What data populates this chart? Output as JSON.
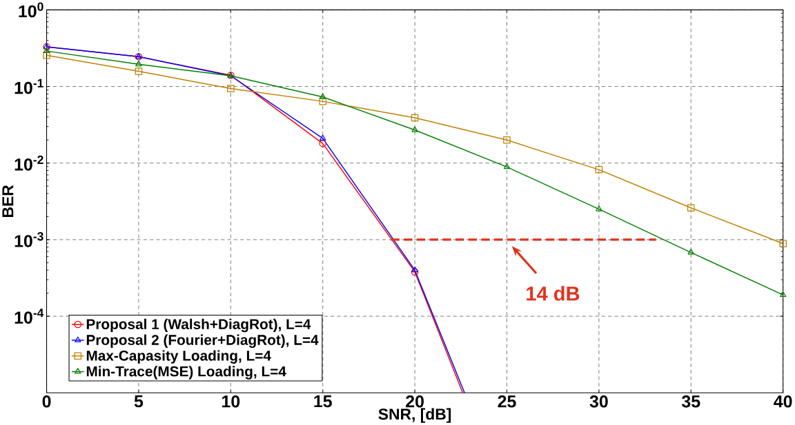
{
  "chart_data": {
    "type": "line",
    "xlabel": "SNR, [dB]",
    "ylabel": "BER",
    "xlim": [
      0,
      40
    ],
    "xticks": [
      0,
      5,
      10,
      15,
      20,
      25,
      30,
      35,
      40
    ],
    "ylim": [
      1e-05,
      1
    ],
    "log": "y",
    "yticks": [
      {
        "value": 0.0001,
        "label": "10$^{-4}$"
      },
      {
        "value": 0.001,
        "label": "10$^{-3}$"
      },
      {
        "value": 0.01,
        "label": "10$^{-2}$"
      },
      {
        "value": 0.1,
        "label": "10$^{-1}$"
      },
      {
        "value": 1,
        "label": "10$^{0}$"
      }
    ],
    "grid": true,
    "legend": "bottom left",
    "line_style": "solid",
    "series": [
      {
        "name": "Proposal 1 (Walsh+DiagRot), L=4",
        "color": "#ff0000",
        "marker": "circle",
        "x": [
          0,
          5,
          10,
          15,
          20,
          22.6
        ],
        "values": [
          0.33,
          0.245,
          0.14,
          0.018,
          0.00038,
          1e-05
        ]
      },
      {
        "name": "Proposal 2 (Fourier+DiagRot), L=4",
        "color": "#0000ff",
        "marker": "triangle",
        "x": [
          0,
          5,
          10,
          15,
          20,
          22.7
        ],
        "values": [
          0.33,
          0.245,
          0.138,
          0.021,
          0.0004,
          1e-05
        ]
      },
      {
        "name": "Max-Capasity Loading, L=4",
        "color": "#bf8000",
        "marker": "square",
        "x": [
          0,
          5,
          10,
          15,
          20,
          25,
          30,
          35,
          40
        ],
        "values": [
          0.256,
          0.158,
          0.094,
          0.064,
          0.039,
          0.02,
          0.0082,
          0.0026,
          0.00089
        ]
      },
      {
        "name": "Min-Trace(MSE) Loading, L=4",
        "color": "#008000",
        "marker": "triangle",
        "x": [
          0,
          5,
          10,
          15,
          20,
          25,
          30,
          35,
          40
        ],
        "values": [
          0.29,
          0.195,
          0.138,
          0.073,
          0.027,
          0.0089,
          0.0025,
          0.00068,
          0.00019
        ]
      },
      {
        "color": "#e2321c",
        "marker": "none",
        "line_style": "dashed",
        "x": [
          18.7,
          33.1
        ],
        "values": [
          0.001,
          0.001
        ]
      }
    ],
    "annotations": [
      {
        "text": "14 dB",
        "x": 25,
        "y": 0.001
      }
    ]
  }
}
